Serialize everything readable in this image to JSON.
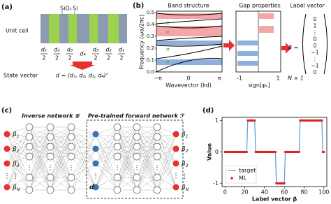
{
  "panel_a": {
    "label": "(a)",
    "materials": [
      "SiO₂",
      "Si"
    ],
    "unit_cell": "Unit cell",
    "widths": [
      {
        "num": "d₁",
        "den": "2"
      },
      {
        "num": "d₂",
        "den": "2"
      },
      {
        "num": "d₃",
        "den": "2"
      },
      {
        "num": "d₄"
      },
      {
        "num": "d₃",
        "den": "2"
      },
      {
        "num": "d₂",
        "den": "2"
      },
      {
        "num": "d₁",
        "den": "2"
      }
    ],
    "state_vector": "State vector",
    "equation": "d = (d₁, d₂, d₃, d₄)ᵀ"
  },
  "panel_b": {
    "label": "(b)",
    "band_title": "Band structure",
    "y_label": "Frequency (ωa/2πc)",
    "yticks": [
      "0.0",
      "0.1",
      "0.2",
      "0.3",
      "0.4",
      "0.5"
    ],
    "x_label": "Wavevector (kd)",
    "xticks": [
      "−π",
      "0",
      "π"
    ],
    "gap_marks": [
      "π",
      "π",
      "π",
      "π"
    ],
    "gap_title": "Gap properties",
    "gap_x_label": "sign[φₙ]",
    "gap_xticks": [
      "-1",
      "1"
    ],
    "vector_title": "Label vector",
    "vector_symbol": "β =",
    "vector_entries": [
      "0",
      "1",
      "⋮",
      "0",
      "0",
      "−1",
      "⋮",
      "−1",
      "0"
    ],
    "vector_size": "N × 1"
  },
  "panel_c": {
    "label": "(c)",
    "inverse": "Inverse network 𝒢",
    "forward": "Pre-trained forward network ℱ",
    "inputs": [
      {
        "base": "β",
        "sub": "1"
      },
      {
        "base": "β",
        "sub": "2"
      },
      {
        "base": "β",
        "sub": "3"
      },
      {
        "base": "⋮"
      },
      {
        "base": "β",
        "sub": "N"
      }
    ],
    "middle": "d",
    "outputs": [
      {
        "base": "β",
        "sub": "1"
      },
      {
        "base": "β",
        "sub": "2"
      },
      {
        "base": "β",
        "sub": "3"
      },
      {
        "base": "⋮"
      },
      {
        "base": "β",
        "sub": "N"
      }
    ]
  },
  "chart_data": {
    "type": "line",
    "panel_label": "(d)",
    "x_label": "Label vector β",
    "y_label": "Value",
    "xlim": [
      -3,
      103
    ],
    "ylim": [
      -1.1,
      1.1
    ],
    "xticks": [
      0,
      20,
      40,
      60,
      80,
      100
    ],
    "yticks": [
      -1,
      0,
      1
    ],
    "legend": "lower left",
    "x": [
      0,
      1,
      2,
      3,
      4,
      5,
      6,
      7,
      8,
      9,
      10,
      11,
      12,
      13,
      14,
      15,
      16,
      17,
      18,
      19,
      20,
      21,
      22,
      23,
      24,
      25,
      26,
      27,
      28,
      29,
      30,
      31,
      32,
      33,
      34,
      35,
      36,
      37,
      38,
      39,
      40,
      41,
      42,
      43,
      44,
      45,
      46,
      47,
      48,
      49,
      50,
      51,
      52,
      53,
      54,
      55,
      56,
      57,
      58,
      59,
      60,
      61,
      62,
      63,
      64,
      65,
      66,
      67,
      68,
      69,
      70,
      71,
      72,
      73,
      74,
      75,
      76,
      77,
      78,
      79,
      80,
      81,
      82,
      83,
      84,
      85,
      86,
      87,
      88,
      89,
      90,
      91,
      92,
      93,
      94,
      95,
      96,
      97,
      98,
      99,
      100
    ],
    "series": [
      {
        "name": "target",
        "color": "#5b9bd5",
        "style": "line",
        "values": [
          0,
          0,
          0,
          0,
          0,
          0,
          0,
          0,
          0,
          0,
          0,
          0,
          0,
          0,
          0,
          0,
          0,
          0,
          0,
          0,
          0,
          0,
          0,
          1,
          1,
          1,
          1,
          1,
          1,
          1,
          1,
          0,
          0,
          0,
          0,
          0,
          0,
          0,
          0,
          0,
          0,
          0,
          0,
          0,
          0,
          0,
          0,
          0,
          0,
          0,
          0,
          0,
          -1,
          -1,
          -1,
          -1,
          -1,
          -1,
          -1,
          -1,
          -1,
          0,
          0,
          0,
          0,
          0,
          0,
          0,
          0,
          0,
          0,
          0,
          0,
          0,
          0,
          0,
          1,
          1,
          1,
          1,
          1,
          1,
          1,
          1,
          1,
          1,
          1,
          1,
          1,
          1,
          1,
          1,
          1,
          1,
          1,
          1,
          1,
          1,
          1,
          0,
          0
        ]
      },
      {
        "name": "ML",
        "color": "#d62728",
        "style": "dots",
        "values": [
          0,
          0,
          0,
          0,
          0,
          0,
          0,
          0,
          0,
          0,
          0,
          0,
          0,
          0,
          0,
          0,
          0,
          0,
          0,
          0,
          0,
          0,
          0,
          1,
          1,
          1,
          1,
          1,
          1,
          1,
          1,
          0,
          0,
          0,
          0,
          0,
          0,
          0,
          0,
          0,
          0,
          0,
          0,
          0,
          0,
          0,
          0,
          0,
          0,
          0,
          0,
          0,
          -1,
          -1,
          -1,
          -1,
          -1,
          -1,
          -1,
          -1,
          -1,
          0,
          0,
          0,
          0,
          0,
          0,
          0,
          0,
          0,
          0,
          0,
          0,
          0,
          0,
          0,
          1,
          1,
          1,
          1,
          1,
          1,
          1,
          1,
          1,
          1,
          1,
          1,
          1,
          1,
          1,
          1,
          1,
          1,
          1,
          1,
          1,
          1,
          1,
          0,
          0
        ]
      }
    ]
  }
}
